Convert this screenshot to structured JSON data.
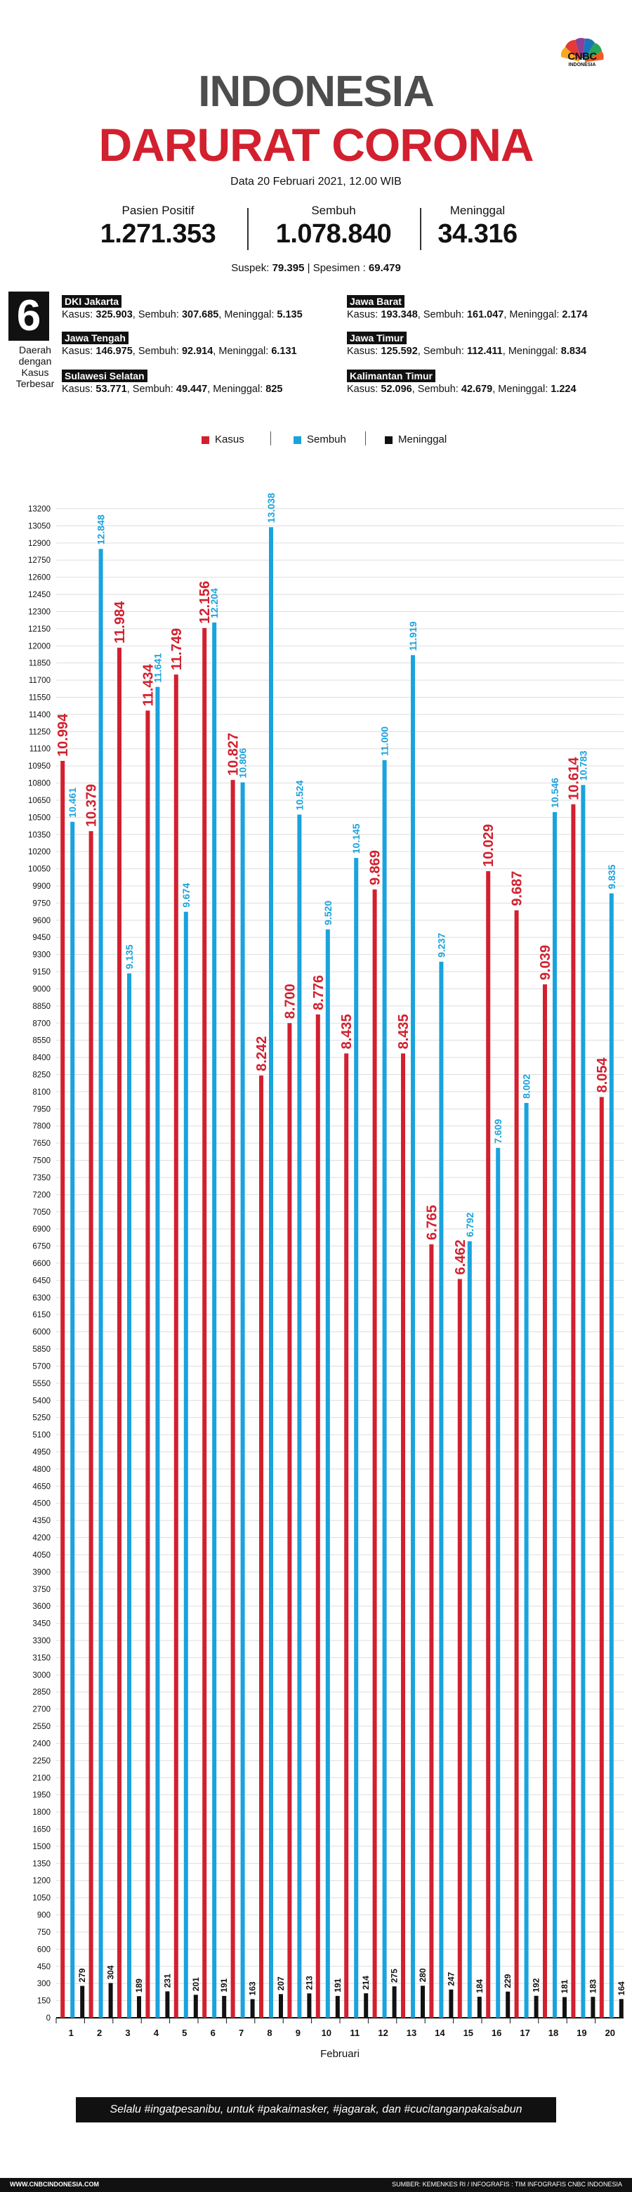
{
  "brand": {
    "logo_text": "CNBC",
    "logo_sub": "INDONESIA"
  },
  "header": {
    "title_line1": "INDONESIA",
    "title_line2": "DARURAT CORONA",
    "data_line": "Data 20 Februari 2021, 12.00 WIB"
  },
  "stats": [
    {
      "label": "Pasien Positif",
      "value": "1.271.353"
    },
    {
      "label": "Sembuh",
      "value": "1.078.840"
    },
    {
      "label": "Meninggal",
      "value": "34.316"
    }
  ],
  "suspek": {
    "label": "Suspek:",
    "value": "79.395",
    "sep": "|",
    "label2": "Spesimen :",
    "value2": "69.479"
  },
  "regions_box": {
    "number": "6",
    "label": "Daerah dengan Kasus Terbesar"
  },
  "regions": [
    {
      "name": "DKI Jakarta",
      "kasus": "325.903",
      "sembuh": "307.685",
      "meninggal": "5.135"
    },
    {
      "name": "Jawa Barat",
      "kasus": "193.348",
      "sembuh": "161.047",
      "meninggal": "2.174"
    },
    {
      "name": "Jawa Tengah",
      "kasus": "146.975",
      "sembuh": "92.914",
      "meninggal": "6.131"
    },
    {
      "name": "Jawa Timur",
      "kasus": "125.592",
      "sembuh": "112.411",
      "meninggal": "8.834"
    },
    {
      "name": "Sulawesi Selatan",
      "kasus": "53.771",
      "sembuh": "49.447",
      "meninggal": "825"
    },
    {
      "name": "Kalimantan Timur",
      "kasus": "52.096",
      "sembuh": "42.679",
      "meninggal": "1.224"
    }
  ],
  "region_labels": {
    "kasus": "Kasus:",
    "sembuh": "Sembuh:",
    "meninggal": "Meninggal:"
  },
  "colors": {
    "kasus": "#d2202f",
    "sembuh": "#1aa3dd",
    "meninggal": "#111111"
  },
  "chart_data": {
    "type": "bar",
    "xlabel": "Februari",
    "categories": [
      "1",
      "2",
      "3",
      "4",
      "5",
      "6",
      "7",
      "8",
      "9",
      "10",
      "11",
      "12",
      "13",
      "14",
      "15",
      "16",
      "17",
      "18",
      "19",
      "20"
    ],
    "series": [
      {
        "name": "Kasus",
        "values": [
          10994,
          10379,
          11984,
          11434,
          11749,
          12156,
          10827,
          8242,
          8700,
          8776,
          8435,
          9869,
          8435,
          6765,
          6462,
          10029,
          9687,
          9039,
          10614,
          8054
        ],
        "labels": [
          "10.994",
          "10.379",
          "11.984",
          "11.434",
          "11.749",
          "12.156",
          "10.827",
          "8.242",
          "8.700",
          "8.776",
          "8.435",
          "9.869",
          "8.435",
          "6.765",
          "6.462",
          "10.029",
          "9.687",
          "9.039",
          "10.614",
          "8.054"
        ]
      },
      {
        "name": "Sembuh",
        "values": [
          10461,
          12848,
          9135,
          11641,
          9674,
          12204,
          10806,
          13038,
          10524,
          9520,
          10145,
          11000,
          11919,
          9237,
          6792,
          7609,
          8002,
          10546,
          10783,
          9835
        ],
        "labels": [
          "10.461",
          "12.848",
          "9.135",
          "11.641",
          "9.674",
          "12.204",
          "10.806",
          "13.038",
          "10.524",
          "9.520",
          "10.145",
          "11.000",
          "11.919",
          "9.237",
          "6.792",
          "7.609",
          "8.002",
          "10.546",
          "10.783",
          "9.835"
        ]
      },
      {
        "name": "Meninggal",
        "values": [
          279,
          304,
          189,
          231,
          201,
          191,
          163,
          207,
          213,
          191,
          214,
          275,
          280,
          247,
          184,
          229,
          192,
          181,
          183,
          164
        ],
        "labels": [
          "279",
          "304",
          "189",
          "231",
          "201",
          "191",
          "163",
          "207",
          "213",
          "191",
          "214",
          "275",
          "280",
          "247",
          "184",
          "229",
          "192",
          "181",
          "183",
          "164"
        ]
      }
    ],
    "ylim": [
      0,
      13200
    ],
    "ytick_step": 150,
    "grid": true,
    "legend": "top-center"
  },
  "footer": {
    "slogan": "Selalu #ingatpesanibu, untuk #pakaimasker, #jagarak, dan #cucitanganpakaisabun",
    "website": "WWW.CNBCINDONESIA.COM",
    "source": "SUMBER: KEMENKES RI / INFOGRAFIS : TIM INFOGRAFIS CNBC INDONESIA"
  }
}
